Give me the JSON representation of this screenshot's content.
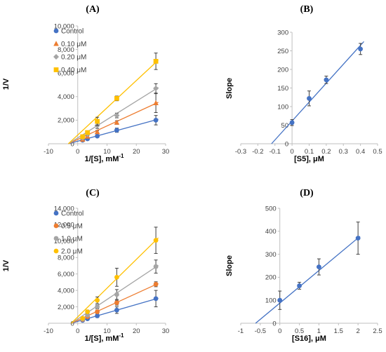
{
  "chart_data": [
    {
      "panel": "(A)",
      "type": "scatter",
      "xlabel": "1/[S], mM",
      "xlabel_sup": "-1",
      "ylabel": "1/V",
      "xlim": [
        -10,
        30
      ],
      "ylim": [
        0,
        10000
      ],
      "xticks": [
        -10,
        0,
        10,
        20,
        30
      ],
      "yticks": [
        0,
        2000,
        4000,
        6000,
        8000,
        10000
      ],
      "ytick_labels": [
        "0",
        "2,000",
        "4,000",
        "6,000",
        "8,000",
        "10,000"
      ],
      "legend_position": "top-left",
      "series": [
        {
          "name": "Control",
          "color": "#4472C4",
          "marker": "circle",
          "x": [
            1.67,
            3.33,
            6.67,
            13.33,
            26.67
          ],
          "y": [
            300,
            420,
            650,
            1150,
            2000
          ],
          "err": [
            0,
            80,
            100,
            180,
            400
          ],
          "fit": {
            "x0": -3.2,
            "y0": 0,
            "x1": 27.5,
            "y1": 2080
          }
        },
        {
          "name": "0.10 μM",
          "color": "#ED7D31",
          "marker": "triangle",
          "x": [
            1.67,
            3.33,
            6.67,
            13.33,
            26.67
          ],
          "y": [
            350,
            620,
            1000,
            1800,
            3450
          ],
          "err": [
            0,
            100,
            120,
            150,
            800
          ],
          "fit": {
            "x0": -3.2,
            "y0": 0,
            "x1": 27.5,
            "y1": 3520
          }
        },
        {
          "name": "0.20 μM",
          "color": "#A5A5A5",
          "marker": "diamond",
          "x": [
            1.67,
            3.33,
            6.67,
            13.33,
            26.67
          ],
          "y": [
            500,
            800,
            1550,
            2400,
            4700
          ],
          "err": [
            0,
            120,
            250,
            200,
            400
          ],
          "fit": {
            "x0": -3.2,
            "y0": 0,
            "x1": 27.5,
            "y1": 4780
          }
        },
        {
          "name": "0.40 μM",
          "color": "#FFC000",
          "marker": "square",
          "x": [
            1.67,
            3.33,
            6.67,
            13.33,
            26.67
          ],
          "y": [
            600,
            950,
            1900,
            3850,
            7000
          ],
          "err": [
            0,
            150,
            350,
            200,
            700
          ],
          "fit": {
            "x0": -3.2,
            "y0": 0,
            "x1": 27.5,
            "y1": 7100
          }
        }
      ]
    },
    {
      "panel": "(B)",
      "type": "scatter",
      "xlabel": "[S5], μM",
      "ylabel": "Slope",
      "xlim": [
        -0.3,
        0.5
      ],
      "ylim": [
        0,
        300
      ],
      "xticks": [
        -0.3,
        -0.2,
        -0.1,
        0,
        0.1,
        0.2,
        0.3,
        0.4,
        0.5
      ],
      "xtick_labels": [
        "-0.3",
        "-0.2",
        "-0.1",
        "0",
        "0.1",
        "0.2",
        "0.3",
        "0.4",
        "0.5"
      ],
      "yticks": [
        0,
        50,
        100,
        150,
        200,
        250,
        300
      ],
      "ytick_labels": [
        "0",
        "50",
        "100",
        "150",
        "200",
        "250",
        "300"
      ],
      "series": [
        {
          "color": "#4472C4",
          "marker": "circle",
          "x": [
            0,
            0.1,
            0.2,
            0.4
          ],
          "y": [
            57,
            122,
            172,
            255
          ],
          "err": [
            8,
            20,
            10,
            15
          ],
          "fit": {
            "x0": -0.12,
            "y0": 0,
            "x1": 0.42,
            "y1": 275
          }
        }
      ]
    },
    {
      "panel": "(C)",
      "type": "scatter",
      "xlabel": "1/[S], mM",
      "xlabel_sup": "-1",
      "ylabel": "1/V",
      "xlim": [
        -10,
        30
      ],
      "ylim": [
        0,
        14000
      ],
      "xticks": [
        -10,
        0,
        10,
        20,
        30
      ],
      "yticks": [
        0,
        2000,
        4000,
        6000,
        8000,
        10000,
        12000,
        14000
      ],
      "ytick_labels": [
        "0",
        "2,000",
        "4,000",
        "6,000",
        "8,000",
        "10,000",
        "12,000",
        "14,000"
      ],
      "legend_position": "top-left",
      "series": [
        {
          "name": "Control",
          "color": "#4472C4",
          "marker": "circle",
          "x": [
            1.67,
            3.33,
            6.67,
            13.33,
            26.67
          ],
          "y": [
            350,
            550,
            900,
            1600,
            3000
          ],
          "err": [
            0,
            100,
            200,
            400,
            1000
          ],
          "fit": {
            "x0": -2.2,
            "y0": 0,
            "x1": 27.5,
            "y1": 3050
          }
        },
        {
          "name": "0.5 μM",
          "color": "#ED7D31",
          "marker": "circle",
          "x": [
            1.67,
            3.33,
            6.67,
            13.33,
            26.67
          ],
          "y": [
            450,
            800,
            1400,
            2500,
            4750
          ],
          "err": [
            0,
            150,
            200,
            300,
            300
          ],
          "fit": {
            "x0": -2.2,
            "y0": 0,
            "x1": 27.5,
            "y1": 4850
          }
        },
        {
          "name": "1.0 μM",
          "color": "#A5A5A5",
          "marker": "circle",
          "x": [
            1.67,
            3.33,
            6.67,
            13.33,
            26.67
          ],
          "y": [
            500,
            1000,
            2000,
            3500,
            6900
          ],
          "err": [
            0,
            150,
            250,
            600,
            800
          ],
          "fit": {
            "x0": -2.2,
            "y0": 0,
            "x1": 27.5,
            "y1": 7050
          }
        },
        {
          "name": "2.0 μM",
          "color": "#FFC000",
          "marker": "circle",
          "x": [
            1.67,
            3.33,
            6.67,
            13.33,
            26.67
          ],
          "y": [
            600,
            1400,
            2800,
            5600,
            10100
          ],
          "err": [
            0,
            200,
            400,
            1100,
            1600
          ],
          "fit": {
            "x0": -2.2,
            "y0": 0,
            "x1": 27.5,
            "y1": 10400
          }
        }
      ]
    },
    {
      "panel": "(D)",
      "type": "scatter",
      "xlabel": "[S16], μM",
      "ylabel": "Slope",
      "xlim": [
        -1,
        2.5
      ],
      "ylim": [
        0,
        500
      ],
      "xticks": [
        -1,
        -0.5,
        0,
        0.5,
        1,
        1.5,
        2,
        2.5
      ],
      "xtick_labels": [
        "-1",
        "-0.5",
        "0",
        "0.5",
        "1",
        "1.5",
        "2",
        "2.5"
      ],
      "yticks": [
        0,
        100,
        200,
        300,
        400,
        500
      ],
      "ytick_labels": [
        "0",
        "100",
        "200",
        "300",
        "400",
        "500"
      ],
      "series": [
        {
          "color": "#4472C4",
          "marker": "circle",
          "x": [
            0,
            0.5,
            1,
            2
          ],
          "y": [
            100,
            163,
            245,
            370
          ],
          "err": [
            40,
            15,
            35,
            70
          ],
          "fit": {
            "x0": -0.62,
            "y0": 0,
            "x1": 2.05,
            "y1": 378
          }
        }
      ]
    }
  ]
}
